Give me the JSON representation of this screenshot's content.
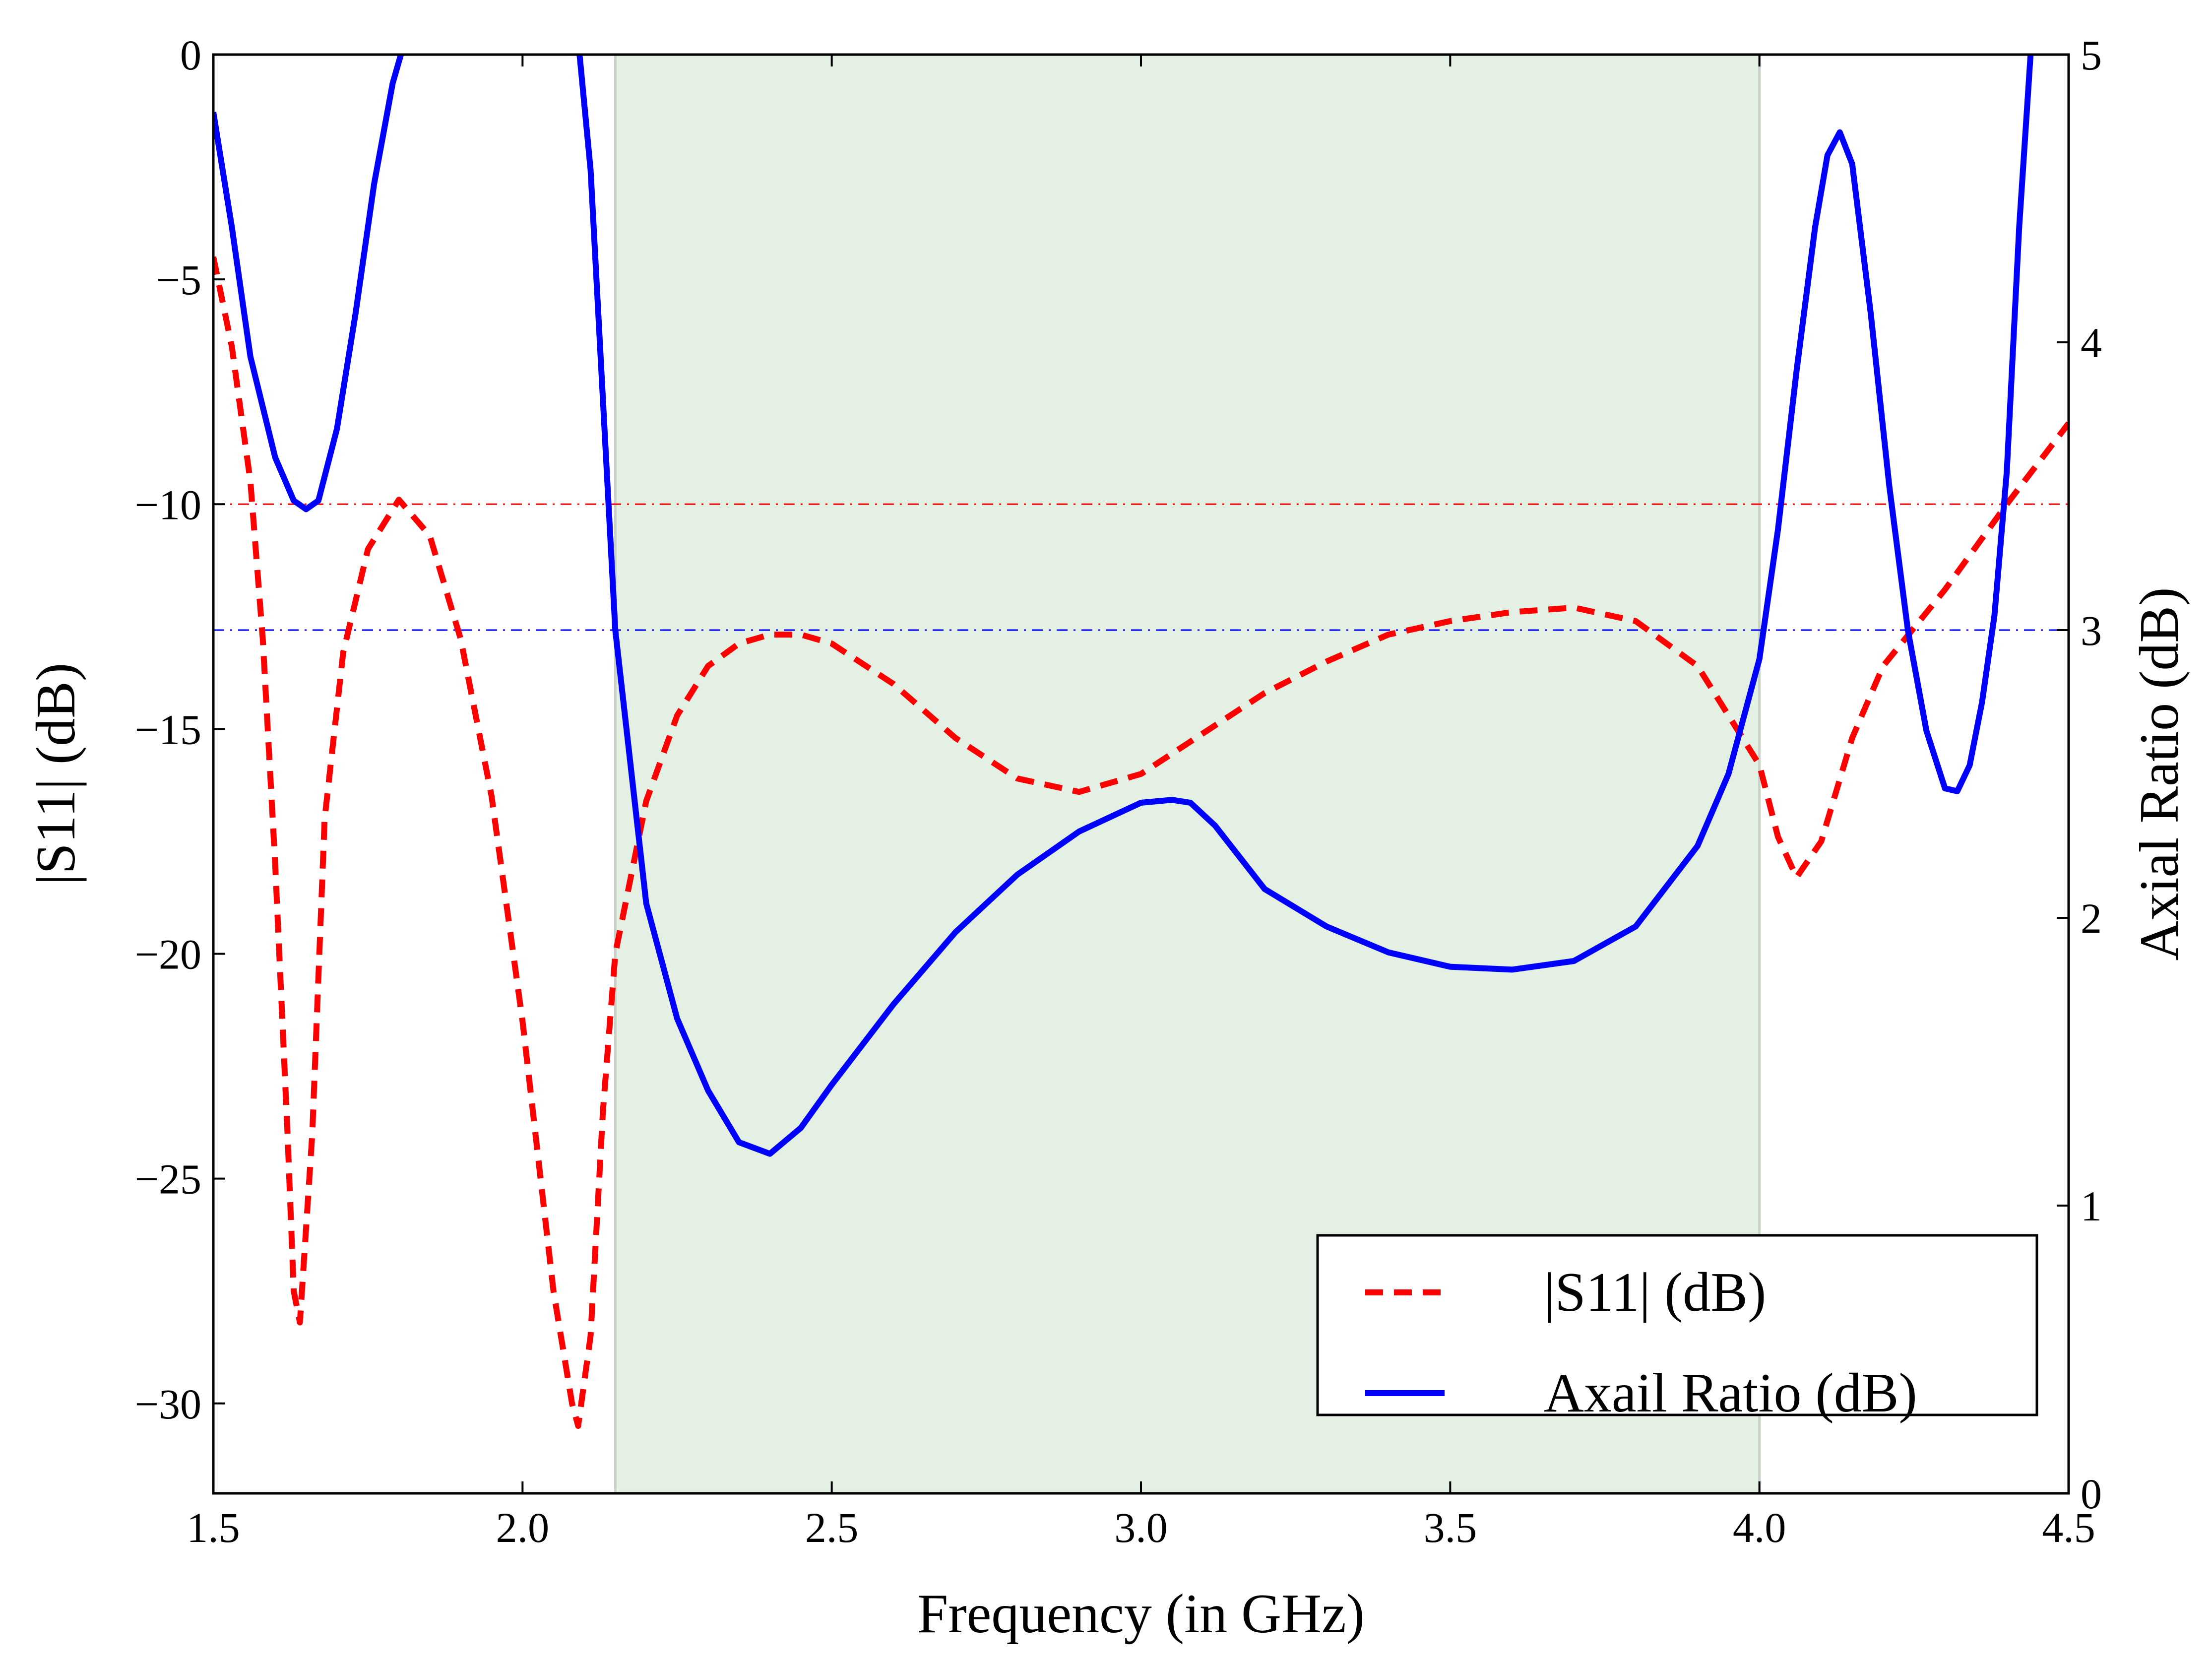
{
  "chart_data": {
    "type": "line",
    "xlabel": "Frequency (in GHz)",
    "ylabel": "|S11| (dB)",
    "y2label": "Axial Ratio (dB)",
    "xlim": [
      1.5,
      4.5
    ],
    "ylim": [
      -32,
      0
    ],
    "y2lim": [
      0,
      5
    ],
    "x_ticks": [
      "1.5",
      "2.0",
      "2.5",
      "3.0",
      "3.5",
      "4.0",
      "4.5"
    ],
    "y_ticks": [
      "0",
      "−5",
      "−10",
      "−15",
      "−20",
      "−25",
      "−30"
    ],
    "y2_ticks": [
      "0",
      "1",
      "2",
      "3",
      "4",
      "5"
    ],
    "grid": false,
    "legend_position": "lower-right",
    "shaded_band": {
      "x": [
        2.15,
        4.0
      ],
      "color": "#e3f0e3"
    },
    "reference_lines": [
      {
        "axis": "left",
        "y": -10,
        "color": "#ff0000",
        "style": "dash-dot"
      },
      {
        "axis": "right",
        "y": 3,
        "color": "#0000ff",
        "style": "dash-dot"
      }
    ],
    "series": [
      {
        "name": "|S11| (dB)",
        "axis": "left",
        "color": "#ff0000",
        "style": "dashed",
        "x": [
          1.5,
          1.53,
          1.56,
          1.58,
          1.6,
          1.62,
          1.63,
          1.64,
          1.66,
          1.68,
          1.71,
          1.75,
          1.8,
          1.85,
          1.9,
          1.95,
          2.0,
          2.05,
          2.08,
          2.09,
          2.11,
          2.13,
          2.15,
          2.2,
          2.25,
          2.3,
          2.35,
          2.4,
          2.45,
          2.5,
          2.6,
          2.7,
          2.8,
          2.9,
          3.0,
          3.1,
          3.2,
          3.3,
          3.4,
          3.5,
          3.6,
          3.7,
          3.8,
          3.9,
          4.0,
          4.03,
          4.06,
          4.1,
          4.15,
          4.2,
          4.3,
          4.4,
          4.5
        ],
        "y": [
          -4.5,
          -6.5,
          -9.5,
          -13,
          -18,
          -24,
          -27.5,
          -28.2,
          -24,
          -17,
          -13.3,
          -11.0,
          -9.9,
          -10.7,
          -13.0,
          -16.5,
          -21.5,
          -27.5,
          -30.0,
          -30.5,
          -28.5,
          -23.5,
          -20.0,
          -16.6,
          -14.7,
          -13.6,
          -13.1,
          -12.9,
          -12.9,
          -13.1,
          -14.0,
          -15.2,
          -16.1,
          -16.4,
          -16.0,
          -15.1,
          -14.2,
          -13.5,
          -12.9,
          -12.6,
          -12.4,
          -12.3,
          -12.6,
          -13.6,
          -15.8,
          -17.4,
          -18.3,
          -17.5,
          -15.2,
          -13.6,
          -11.9,
          -10.0,
          -8.2
        ]
      },
      {
        "name": "Axail Ratio (dB)",
        "axis": "right",
        "color": "#0000ff",
        "style": "solid",
        "x": [
          1.5,
          1.53,
          1.56,
          1.6,
          1.63,
          1.65,
          1.67,
          1.7,
          1.73,
          1.76,
          1.79,
          1.81,
          2.09,
          2.11,
          2.13,
          2.15,
          2.2,
          2.25,
          2.3,
          2.35,
          2.4,
          2.45,
          2.5,
          2.6,
          2.7,
          2.8,
          2.9,
          3.0,
          3.05,
          3.08,
          3.12,
          3.2,
          3.3,
          3.4,
          3.5,
          3.6,
          3.7,
          3.8,
          3.9,
          3.95,
          4.0,
          4.03,
          4.06,
          4.09,
          4.11,
          4.13,
          4.15,
          4.18,
          4.21,
          4.24,
          4.27,
          4.3,
          4.32,
          4.34,
          4.36,
          4.38,
          4.4,
          4.42,
          4.44
        ],
        "y": [
          4.8,
          4.4,
          3.95,
          3.6,
          3.45,
          3.42,
          3.45,
          3.7,
          4.1,
          4.55,
          4.9,
          5.05,
          5.05,
          4.6,
          3.8,
          3.0,
          2.05,
          1.65,
          1.4,
          1.22,
          1.18,
          1.27,
          1.42,
          1.7,
          1.95,
          2.15,
          2.3,
          2.4,
          2.41,
          2.4,
          2.32,
          2.1,
          1.97,
          1.88,
          1.83,
          1.82,
          1.85,
          1.97,
          2.25,
          2.5,
          2.9,
          3.35,
          3.9,
          4.4,
          4.65,
          4.73,
          4.62,
          4.1,
          3.5,
          3.0,
          2.65,
          2.45,
          2.44,
          2.53,
          2.75,
          3.05,
          3.55,
          4.4,
          5.05
        ]
      }
    ]
  }
}
